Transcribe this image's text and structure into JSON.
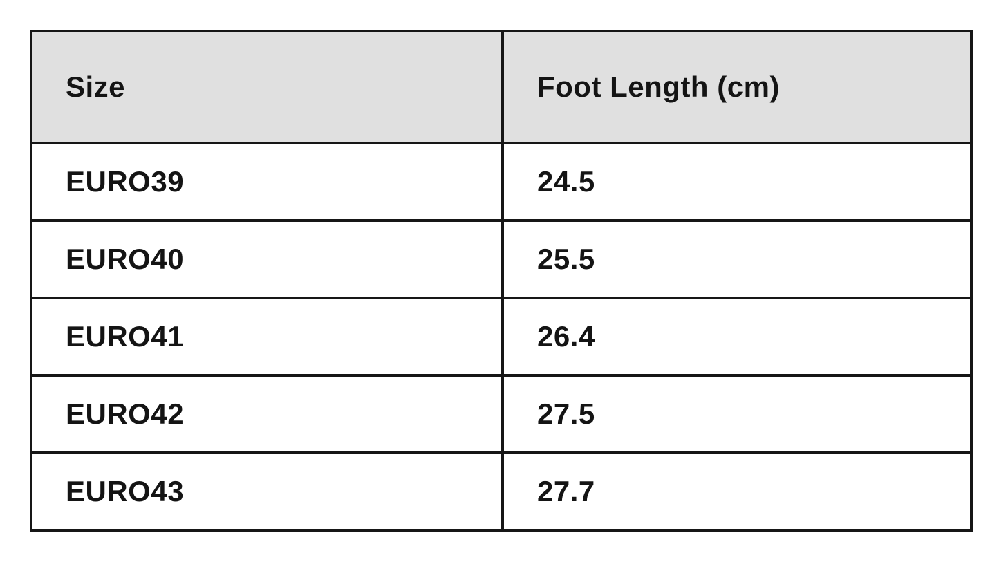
{
  "table": {
    "headers": {
      "size": "Size",
      "foot_length": "Foot Length (cm)"
    },
    "rows": [
      {
        "size": "EURO39",
        "foot_length": "24.5"
      },
      {
        "size": "EURO40",
        "foot_length": "25.5"
      },
      {
        "size": "EURO41",
        "foot_length": "26.4"
      },
      {
        "size": "EURO42",
        "foot_length": "27.5"
      },
      {
        "size": "EURO43",
        "foot_length": "27.7"
      }
    ],
    "colors": {
      "header_bg": "#e0e0e0",
      "border": "#161616",
      "row_bg": "#ffffff",
      "text": "#141414"
    }
  },
  "chart_data": {
    "type": "table",
    "title": "",
    "columns": [
      "Size",
      "Foot Length (cm)"
    ],
    "categories": [
      "EURO39",
      "EURO40",
      "EURO41",
      "EURO42",
      "EURO43"
    ],
    "values": [
      24.5,
      25.5,
      26.4,
      27.5,
      27.7
    ],
    "xlabel": "Size",
    "ylabel": "Foot Length (cm)"
  }
}
